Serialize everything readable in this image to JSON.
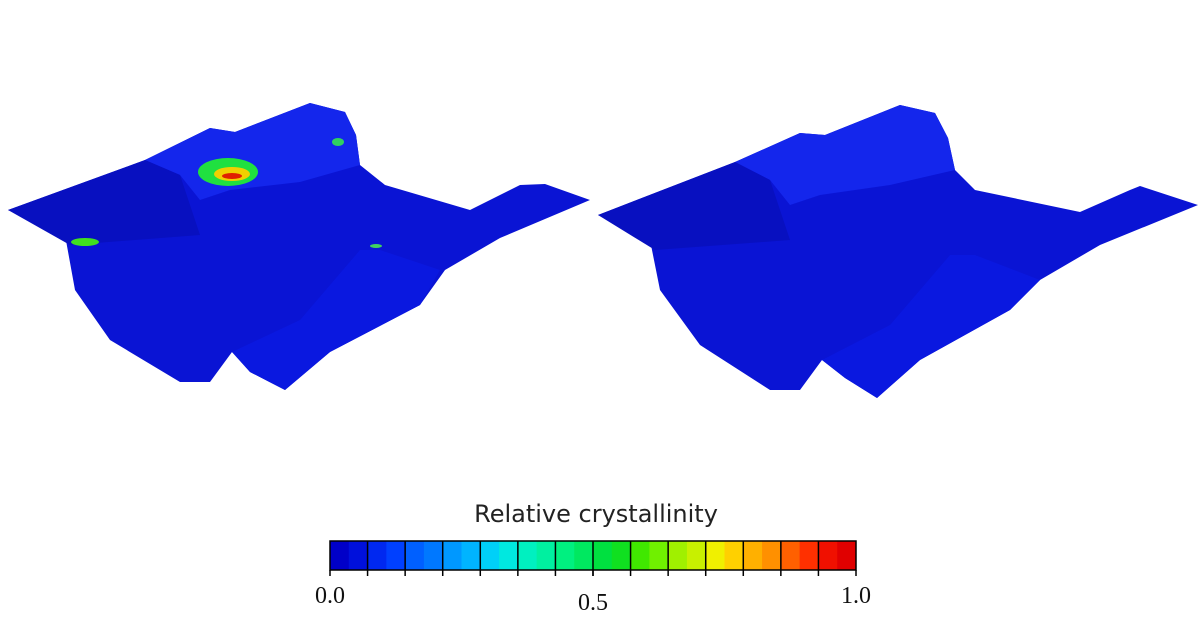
{
  "colorbar": {
    "title": "Relative crystallinity",
    "range": [
      0,
      1
    ],
    "ticks": [
      {
        "value": 0,
        "label": "0.0"
      },
      {
        "value": 0.5,
        "label": "0.5"
      },
      {
        "value": 1,
        "label": "1.0"
      }
    ],
    "colors": [
      "#0000c8",
      "#0010dc",
      "#0028f0",
      "#0040ff",
      "#0060ff",
      "#0078ff",
      "#0098ff",
      "#00b4ff",
      "#00d0f8",
      "#00e8e0",
      "#00f0c0",
      "#00f0a0",
      "#00f080",
      "#00e860",
      "#00e040",
      "#10e020",
      "#40e800",
      "#70f000",
      "#a0f000",
      "#c8f000",
      "#f0f000",
      "#ffd000",
      "#ffb000",
      "#ff9000",
      "#ff6000",
      "#ff3000",
      "#f01000",
      "#e00000"
    ]
  }
}
